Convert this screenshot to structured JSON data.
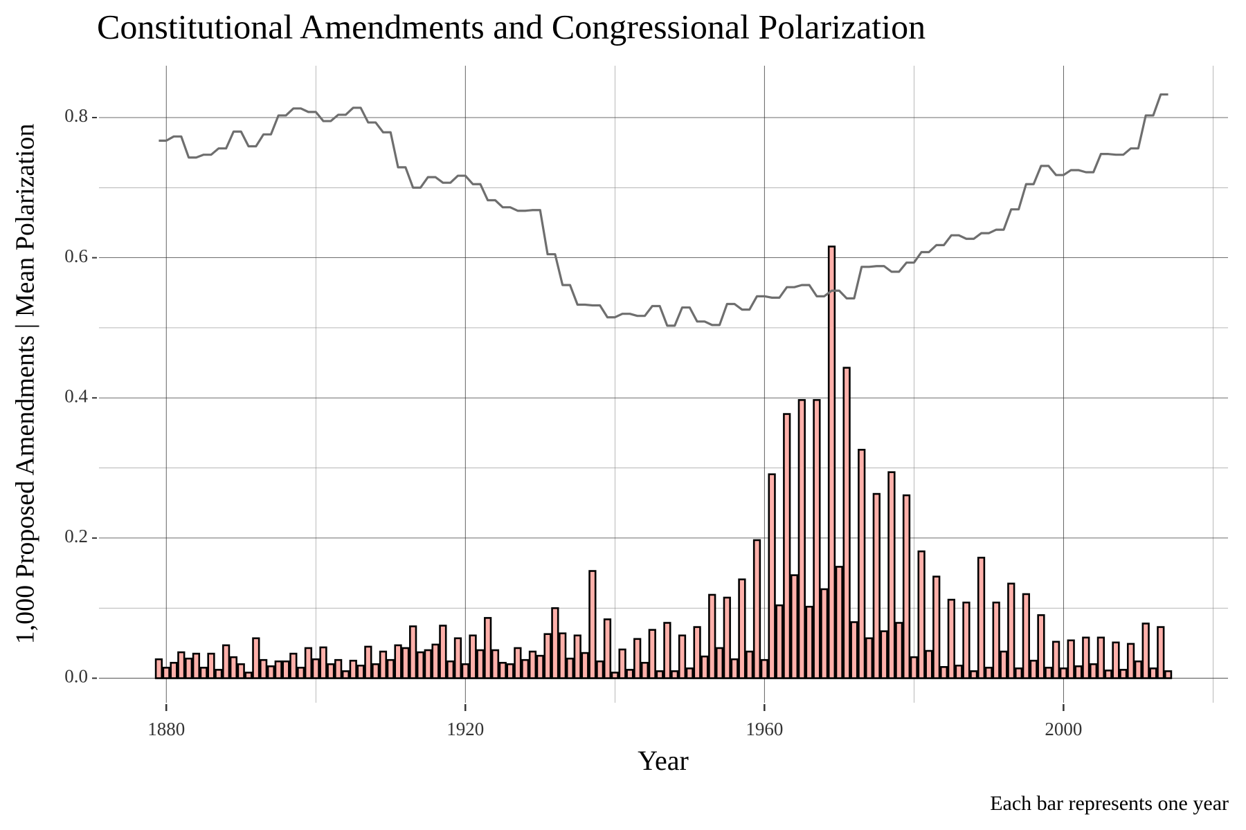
{
  "chart_data": {
    "type": "bar+line",
    "title": "Constitutional Amendments and Congressional Polarization",
    "x_label": "Year",
    "y_label": "1,000 Proposed Amendments | Mean Polarization",
    "caption": "Each bar represents one year",
    "x": [
      1879,
      1880,
      1881,
      1882,
      1883,
      1884,
      1885,
      1886,
      1887,
      1888,
      1889,
      1890,
      1891,
      1892,
      1893,
      1894,
      1895,
      1896,
      1897,
      1898,
      1899,
      1900,
      1901,
      1902,
      1903,
      1904,
      1905,
      1906,
      1907,
      1908,
      1909,
      1910,
      1911,
      1912,
      1913,
      1914,
      1915,
      1916,
      1917,
      1918,
      1919,
      1920,
      1921,
      1922,
      1923,
      1924,
      1925,
      1926,
      1927,
      1928,
      1929,
      1930,
      1931,
      1932,
      1933,
      1934,
      1935,
      1936,
      1937,
      1938,
      1939,
      1940,
      1941,
      1942,
      1943,
      1944,
      1945,
      1946,
      1947,
      1948,
      1949,
      1950,
      1951,
      1952,
      1953,
      1954,
      1955,
      1956,
      1957,
      1958,
      1959,
      1960,
      1961,
      1962,
      1963,
      1964,
      1965,
      1966,
      1967,
      1968,
      1969,
      1970,
      1971,
      1972,
      1973,
      1974,
      1975,
      1976,
      1977,
      1978,
      1979,
      1980,
      1981,
      1982,
      1983,
      1984,
      1985,
      1986,
      1987,
      1988,
      1989,
      1990,
      1991,
      1992,
      1993,
      1994,
      1995,
      1996,
      1997,
      1998,
      1999,
      2000,
      2001,
      2002,
      2003,
      2004,
      2005,
      2006,
      2007,
      2008,
      2009,
      2010,
      2011,
      2012,
      2013,
      2014
    ],
    "series": [
      {
        "type": "bar",
        "color": "#ffb0aa",
        "edge_color": "#000000",
        "values": [
          0.027,
          0.015,
          0.022,
          0.037,
          0.028,
          0.035,
          0.015,
          0.035,
          0.012,
          0.047,
          0.03,
          0.02,
          0.008,
          0.057,
          0.026,
          0.017,
          0.024,
          0.024,
          0.035,
          0.015,
          0.043,
          0.027,
          0.044,
          0.02,
          0.026,
          0.01,
          0.025,
          0.018,
          0.045,
          0.02,
          0.038,
          0.026,
          0.047,
          0.043,
          0.074,
          0.037,
          0.04,
          0.048,
          0.075,
          0.024,
          0.057,
          0.02,
          0.061,
          0.04,
          0.086,
          0.04,
          0.022,
          0.02,
          0.043,
          0.026,
          0.038,
          0.032,
          0.063,
          0.1,
          0.064,
          0.028,
          0.061,
          0.036,
          0.153,
          0.024,
          0.084,
          0.008,
          0.041,
          0.012,
          0.056,
          0.022,
          0.069,
          0.01,
          0.079,
          0.01,
          0.061,
          0.014,
          0.073,
          0.031,
          0.119,
          0.043,
          0.115,
          0.027,
          0.141,
          0.038,
          0.197,
          0.026,
          0.291,
          0.104,
          0.377,
          0.147,
          0.397,
          0.102,
          0.397,
          0.127,
          0.616,
          0.159,
          0.443,
          0.08,
          0.326,
          0.057,
          0.263,
          0.067,
          0.294,
          0.079,
          0.261,
          0.03,
          0.181,
          0.039,
          0.145,
          0.016,
          0.112,
          0.018,
          0.108,
          0.01,
          0.172,
          0.015,
          0.108,
          0.038,
          0.135,
          0.014,
          0.12,
          0.025,
          0.09,
          0.015,
          0.052,
          0.014,
          0.054,
          0.017,
          0.058,
          0.02,
          0.058,
          0.011,
          0.051,
          0.012,
          0.049,
          0.024,
          0.078,
          0.014,
          0.073,
          0.01
        ]
      },
      {
        "type": "line",
        "color": "#6e6e6e",
        "values": [
          0.767,
          0.767,
          0.773,
          0.773,
          0.743,
          0.743,
          0.747,
          0.747,
          0.756,
          0.756,
          0.78,
          0.78,
          0.759,
          0.759,
          0.776,
          0.776,
          0.803,
          0.803,
          0.813,
          0.813,
          0.808,
          0.808,
          0.795,
          0.795,
          0.804,
          0.804,
          0.814,
          0.814,
          0.793,
          0.793,
          0.779,
          0.779,
          0.729,
          0.729,
          0.7,
          0.7,
          0.715,
          0.715,
          0.707,
          0.707,
          0.717,
          0.717,
          0.705,
          0.705,
          0.682,
          0.682,
          0.672,
          0.672,
          0.667,
          0.667,
          0.668,
          0.668,
          0.605,
          0.605,
          0.561,
          0.561,
          0.533,
          0.533,
          0.532,
          0.532,
          0.515,
          0.515,
          0.52,
          0.52,
          0.517,
          0.517,
          0.531,
          0.531,
          0.503,
          0.503,
          0.529,
          0.529,
          0.509,
          0.509,
          0.504,
          0.504,
          0.534,
          0.534,
          0.526,
          0.526,
          0.545,
          0.545,
          0.543,
          0.543,
          0.558,
          0.558,
          0.561,
          0.561,
          0.545,
          0.545,
          0.553,
          0.553,
          0.542,
          0.542,
          0.587,
          0.587,
          0.588,
          0.588,
          0.58,
          0.58,
          0.593,
          0.593,
          0.608,
          0.608,
          0.618,
          0.618,
          0.632,
          0.632,
          0.627,
          0.627,
          0.635,
          0.635,
          0.64,
          0.64,
          0.669,
          0.669,
          0.705,
          0.705,
          0.731,
          0.731,
          0.718,
          0.718,
          0.725,
          0.725,
          0.722,
          0.722,
          0.748,
          0.748,
          0.747,
          0.747,
          0.756,
          0.756,
          0.803,
          0.803,
          0.833,
          0.833
        ]
      }
    ],
    "xlim": [
      1871,
      2022
    ],
    "xticks": [
      1880,
      1920,
      1960,
      2000
    ],
    "xticks_minor": [
      1900,
      1940,
      1980,
      2020
    ],
    "ylim": [
      -0.035,
      0.874
    ],
    "yticks": [
      {
        "value": 0,
        "label": "0.0"
      },
      0.2,
      0.4,
      0.6,
      0.8
    ],
    "yticks_minor": [
      0.1,
      0.3,
      0.5,
      0.7
    ],
    "grid": true
  }
}
